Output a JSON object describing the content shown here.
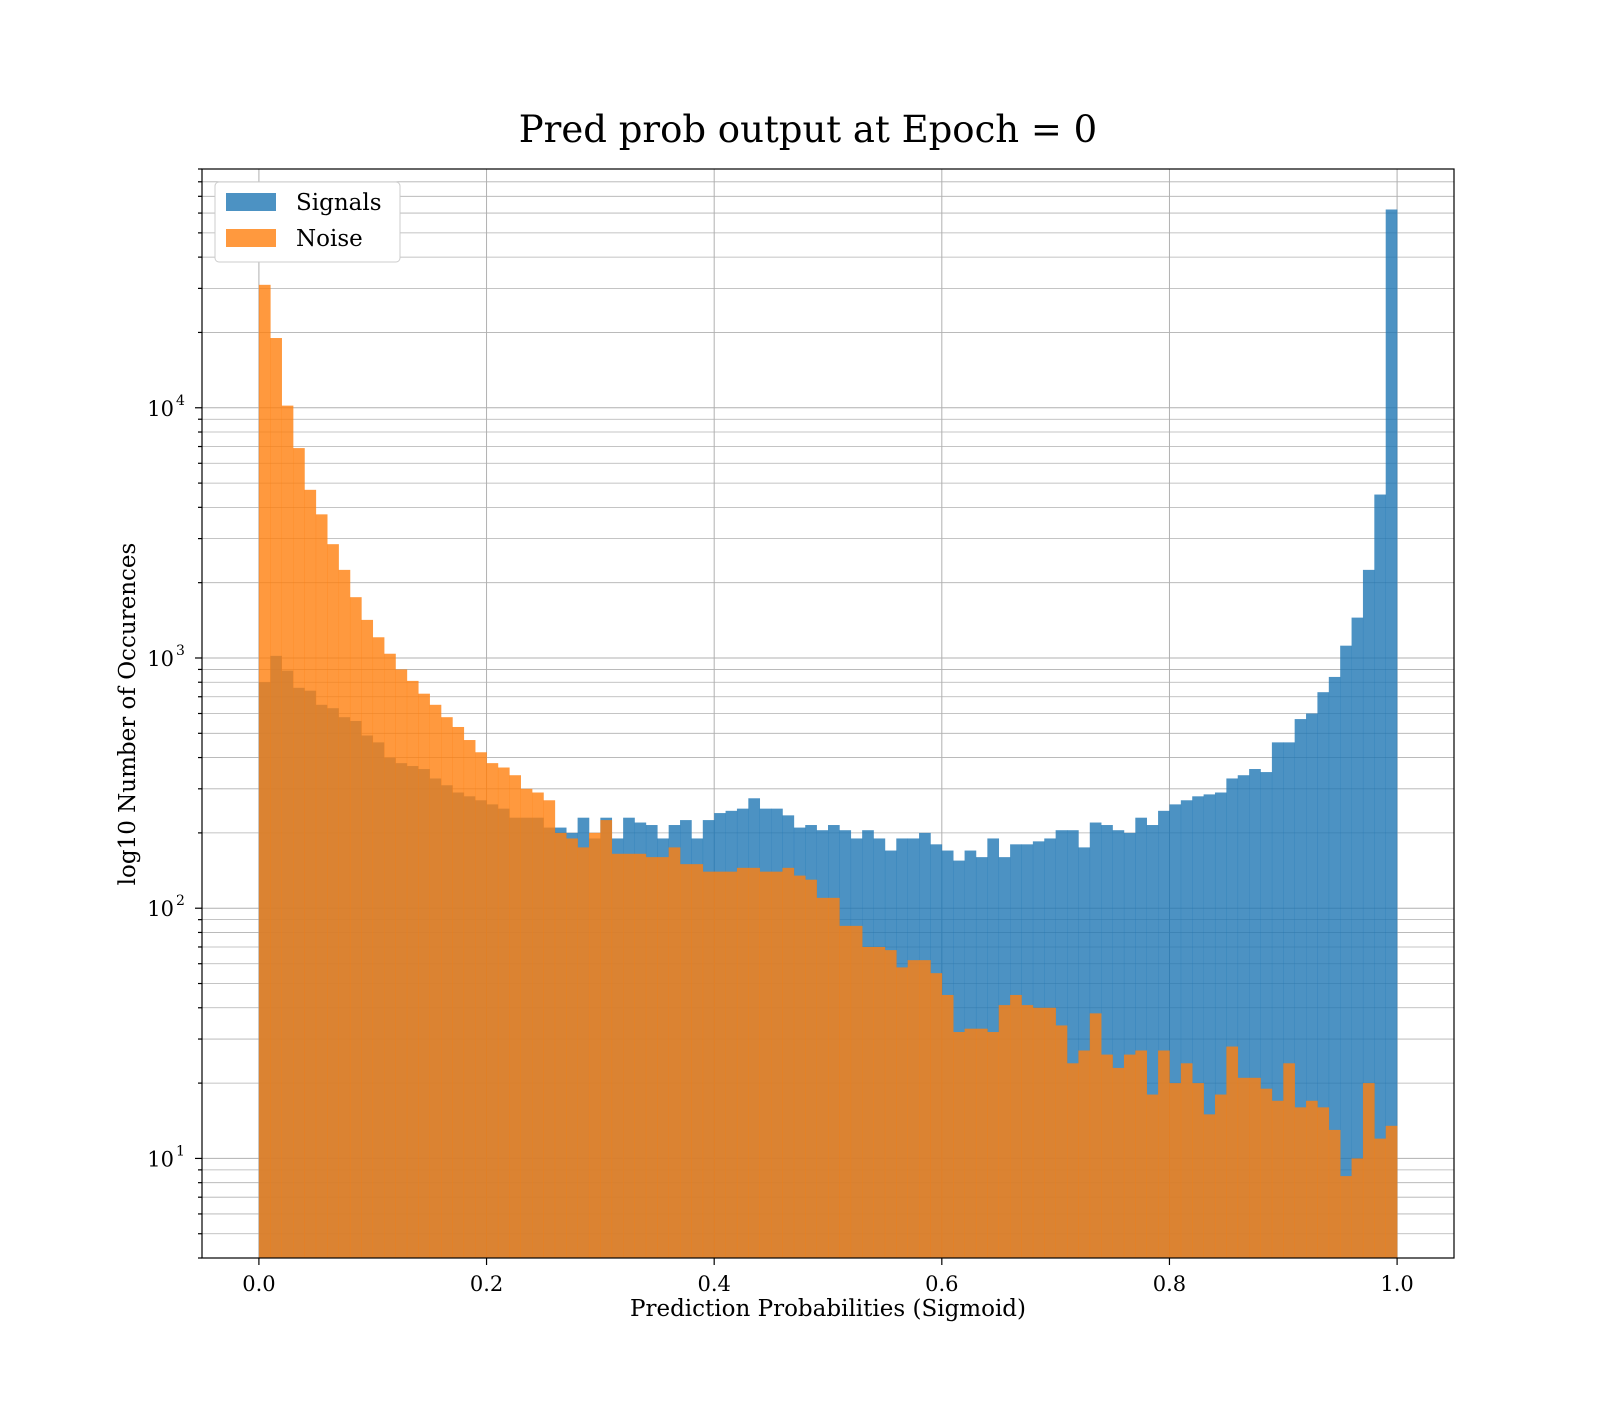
{
  "chart_data": {
    "type": "bar",
    "title": "Pred prob output at Epoch = 0",
    "xlabel": "Prediction Probabilities (Sigmoid)",
    "ylabel": "log10 Number of Occurences",
    "xlim": [
      -0.05,
      1.05
    ],
    "ylim": [
      4.0,
      90000
    ],
    "y_scale": "log",
    "grid": true,
    "legend_position": "upper left",
    "x_ticks": [
      {
        "value": 0.0,
        "label": "0.0"
      },
      {
        "value": 0.2,
        "label": "0.2"
      },
      {
        "value": 0.4,
        "label": "0.4"
      },
      {
        "value": 0.6,
        "label": "0.6"
      },
      {
        "value": 0.8,
        "label": "0.8"
      },
      {
        "value": 1.0,
        "label": "1.0"
      }
    ],
    "y_ticks": [
      {
        "value": 10,
        "base": "10",
        "exp": "1"
      },
      {
        "value": 100,
        "base": "10",
        "exp": "2"
      },
      {
        "value": 1000,
        "base": "10",
        "exp": "3"
      },
      {
        "value": 10000,
        "base": "10",
        "exp": "4"
      }
    ],
    "bins": {
      "start": 0.0,
      "end": 1.0,
      "count": 100
    },
    "series": [
      {
        "name": "Signals",
        "color": "#1f77b4",
        "opacity": 0.8,
        "values": [
          800,
          1020,
          890,
          760,
          740,
          650,
          630,
          580,
          560,
          490,
          460,
          400,
          380,
          370,
          360,
          330,
          310,
          290,
          280,
          270,
          260,
          250,
          230,
          230,
          230,
          210,
          210,
          200,
          230,
          190,
          230,
          190,
          230,
          220,
          215,
          190,
          215,
          225,
          190,
          225,
          240,
          245,
          250,
          275,
          250,
          250,
          235,
          210,
          215,
          205,
          215,
          205,
          190,
          205,
          190,
          170,
          190,
          190,
          200,
          180,
          170,
          155,
          170,
          160,
          190,
          160,
          180,
          180,
          185,
          190,
          205,
          205,
          175,
          220,
          215,
          205,
          200,
          230,
          215,
          245,
          260,
          270,
          280,
          285,
          290,
          330,
          340,
          360,
          350,
          460,
          460,
          570,
          600,
          730,
          840,
          1120,
          1450,
          2250,
          4500,
          62000
        ]
      },
      {
        "name": "Noise",
        "color": "#ff7f0e",
        "opacity": 0.8,
        "values": [
          31000,
          19000,
          10200,
          6900,
          4700,
          3750,
          2850,
          2250,
          1750,
          1420,
          1210,
          1040,
          900,
          810,
          720,
          650,
          580,
          530,
          470,
          420,
          380,
          365,
          340,
          300,
          290,
          270,
          200,
          190,
          175,
          200,
          225,
          165,
          165,
          165,
          160,
          160,
          175,
          150,
          150,
          140,
          140,
          140,
          145,
          145,
          140,
          140,
          145,
          135,
          130,
          110,
          110,
          85,
          85,
          70,
          70,
          68,
          58,
          62,
          62,
          55,
          45,
          32,
          33,
          33,
          32,
          41,
          45,
          41,
          40,
          40,
          34,
          24,
          27,
          38,
          26,
          23,
          26,
          27,
          18,
          27,
          20,
          24,
          20,
          15,
          18,
          28,
          21,
          21,
          19,
          17,
          24,
          16,
          17,
          16,
          13,
          8.5,
          10,
          20,
          12,
          13.5
        ]
      }
    ]
  }
}
